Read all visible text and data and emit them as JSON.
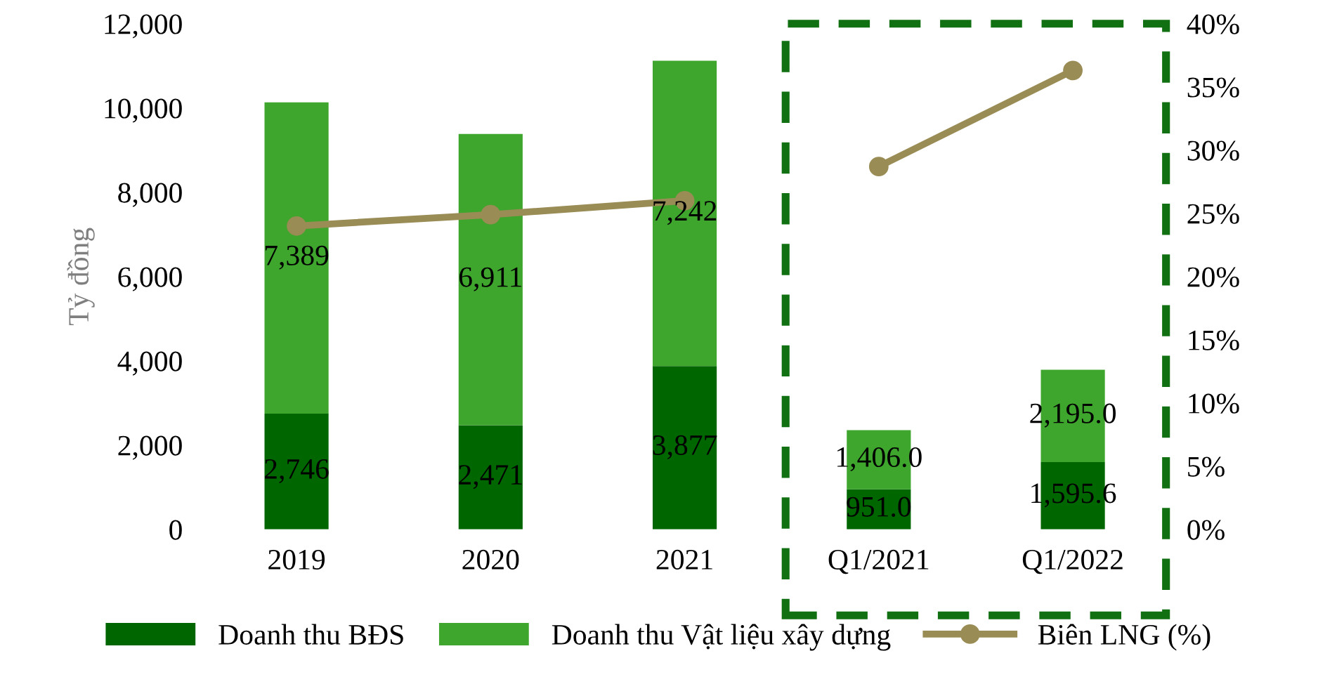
{
  "chart_data": {
    "type": "bar",
    "stacked": true,
    "ylabel": "Tỷ đồng",
    "categories": [
      "2019",
      "2020",
      "2021",
      "Q1/2021",
      "Q1/2022"
    ],
    "series": [
      {
        "name": "Doanh thu BĐS",
        "color": "#006600",
        "values": [
          2746,
          2471,
          3877,
          951.0,
          1595.6
        ],
        "value_labels": [
          "2,746",
          "2,471",
          "3,877",
          "951.0",
          "1,595.6"
        ]
      },
      {
        "name": "Doanh thu Vật liệu xây dựng",
        "color": "#3ea52d",
        "values": [
          7389,
          6911,
          7242,
          1406.0,
          2195.0
        ],
        "value_labels": [
          "7,389",
          "6,911",
          "7,242",
          "1,406.0",
          "2,195.0"
        ]
      },
      {
        "name": "Biên LNG (%)",
        "type": "line",
        "axis": "y2",
        "color": "#9a8c55",
        "marker": "circle",
        "values": [
          24.0,
          24.9,
          26.0,
          null,
          null
        ]
      },
      {
        "type": "line",
        "axis": "y2",
        "color": "#9a8c55",
        "marker": "circle",
        "values": [
          null,
          null,
          null,
          28.7,
          36.3
        ]
      }
    ],
    "ylim": [
      0,
      12000
    ],
    "yticks": [
      {
        "value": 0,
        "label": "0"
      },
      {
        "value": 2000,
        "label": "2,000"
      },
      {
        "value": 4000,
        "label": "4,000"
      },
      {
        "value": 6000,
        "label": "6,000"
      },
      {
        "value": 8000,
        "label": "8,000"
      },
      {
        "value": 10000,
        "label": "10,000"
      },
      {
        "value": 12000,
        "label": "12,000"
      }
    ],
    "y2lim": [
      0,
      40
    ],
    "y2ticks": [
      {
        "value": 0,
        "label": "0%"
      },
      {
        "value": 5,
        "label": "5%"
      },
      {
        "value": 10,
        "label": "10%"
      },
      {
        "value": 15,
        "label": "15%"
      },
      {
        "value": 20,
        "label": "20%"
      },
      {
        "value": 25,
        "label": "25%"
      },
      {
        "value": 30,
        "label": "30%"
      },
      {
        "value": 35,
        "label": "35%"
      },
      {
        "value": 40,
        "label": "40%"
      }
    ],
    "grid": false,
    "legend": "bottom"
  }
}
